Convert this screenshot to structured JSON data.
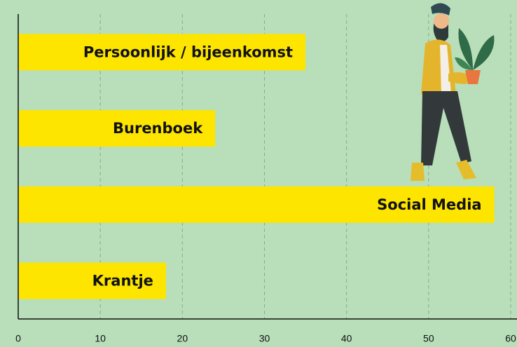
{
  "chart_data": {
    "type": "hbar",
    "categories": [
      "Persoonlijk / bijeenkomst",
      "Burenboek",
      "Social Media",
      "Krantje"
    ],
    "values": [
      35,
      24,
      58,
      18
    ],
    "color": "#fde500",
    "xlim": [
      0,
      60
    ],
    "xticks": [
      0,
      10,
      20,
      30,
      40,
      50,
      60
    ],
    "grid": true
  }
}
